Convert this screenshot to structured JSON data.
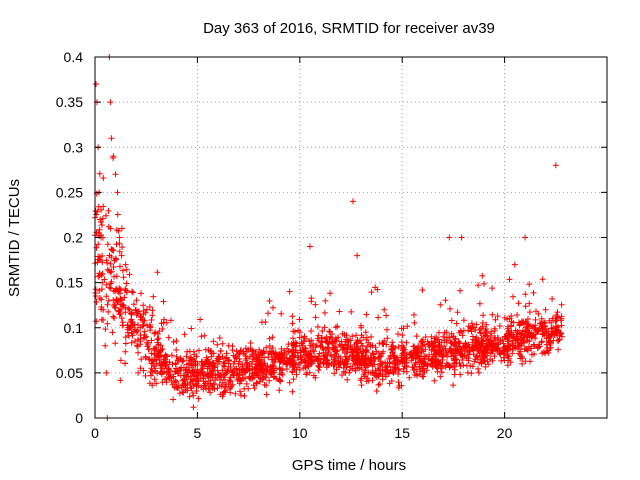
{
  "chart_data": {
    "type": "scatter",
    "title": "Day 363 of 2016, SRMTID for receiver av39",
    "xlabel": "GPS time / hours",
    "ylabel": "SRMTID / TECUs",
    "xlim": [
      0,
      25
    ],
    "ylim": [
      0,
      0.4
    ],
    "xticks": [
      "0",
      "5",
      "10",
      "15",
      "20"
    ],
    "yticks": [
      "0",
      "0.05",
      "0.1",
      "0.15",
      "0.2",
      "0.25",
      "0.3",
      "0.35",
      "0.4"
    ],
    "grid": true,
    "marker": "+",
    "color": "#ff0000",
    "series": [
      {
        "name": "SRMTID",
        "sample_points": [
          [
            0.05,
            0.37
          ],
          [
            0.1,
            0.35
          ],
          [
            0.15,
            0.3
          ],
          [
            0.2,
            0.25
          ],
          [
            0.25,
            0.22
          ],
          [
            0.3,
            0.2
          ],
          [
            0.35,
            0.15
          ],
          [
            0.4,
            0.12
          ],
          [
            0.5,
            0.08
          ],
          [
            0.55,
            0.05
          ],
          [
            0.6,
            0.0
          ],
          [
            0.7,
            0.4
          ],
          [
            0.75,
            0.35
          ],
          [
            0.8,
            0.31
          ],
          [
            0.9,
            0.29
          ],
          [
            1.0,
            0.27
          ],
          [
            1.1,
            0.25
          ],
          [
            1.2,
            0.2
          ],
          [
            1.3,
            0.18
          ],
          [
            1.5,
            0.17
          ],
          [
            1.8,
            0.14
          ],
          [
            2.0,
            0.12
          ],
          [
            2.5,
            0.09
          ],
          [
            3.0,
            0.06
          ],
          [
            3.5,
            0.05
          ],
          [
            4.0,
            0.04
          ],
          [
            4.5,
            0.05
          ],
          [
            5.0,
            0.06
          ],
          [
            6.0,
            0.06
          ],
          [
            7.0,
            0.06
          ],
          [
            8.0,
            0.07
          ],
          [
            9.0,
            0.07
          ],
          [
            9.5,
            0.14
          ],
          [
            10.0,
            0.08
          ],
          [
            10.5,
            0.19
          ],
          [
            11.0,
            0.08
          ],
          [
            12.0,
            0.08
          ],
          [
            12.6,
            0.24
          ],
          [
            12.8,
            0.18
          ],
          [
            13.0,
            0.1
          ],
          [
            14.0,
            0.06
          ],
          [
            15.0,
            0.08
          ],
          [
            16.0,
            0.08
          ],
          [
            17.0,
            0.09
          ],
          [
            17.3,
            0.2
          ],
          [
            17.9,
            0.2
          ],
          [
            18.5,
            0.1
          ],
          [
            19.0,
            0.09
          ],
          [
            20.0,
            0.09
          ],
          [
            20.5,
            0.17
          ],
          [
            21.0,
            0.2
          ],
          [
            21.5,
            0.1
          ],
          [
            22.0,
            0.12
          ],
          [
            22.5,
            0.28
          ],
          [
            22.8,
            0.09
          ]
        ]
      }
    ]
  }
}
